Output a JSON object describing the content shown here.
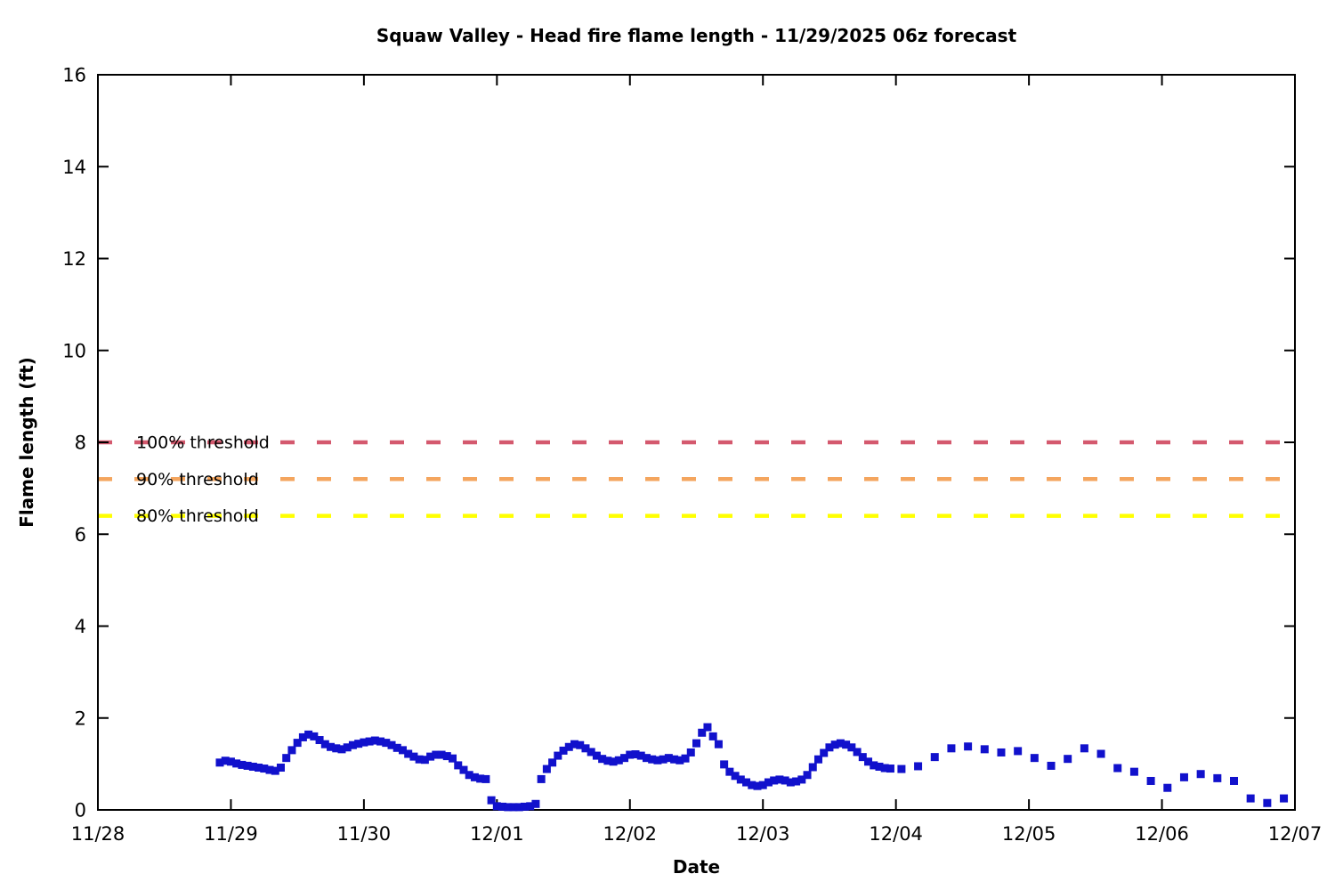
{
  "chart_data": {
    "type": "scatter",
    "title": "Squaw Valley - Head fire flame length - 11/29/2025 06z forecast",
    "xlabel": "Date",
    "ylabel": "Flame length (ft)",
    "x_tick_labels": [
      "11/28",
      "11/29",
      "11/30",
      "12/01",
      "12/02",
      "12/03",
      "12/04",
      "12/05",
      "12/06",
      "12/07"
    ],
    "x_tick_days": [
      0,
      1,
      2,
      3,
      4,
      5,
      6,
      7,
      8,
      9
    ],
    "xlim_days": [
      0,
      9
    ],
    "y_ticks": [
      0,
      2,
      4,
      6,
      8,
      10,
      12,
      14,
      16
    ],
    "ylim": [
      0,
      16
    ],
    "grid": false,
    "x_unit": "hours since 11/28 00:00",
    "thresholds": [
      {
        "label": "100% threshold",
        "value": 8.0,
        "color": "#d4596e"
      },
      {
        "label": "90% threshold",
        "value": 7.2,
        "color": "#f4a55e"
      },
      {
        "label": "80% threshold",
        "value": 6.4,
        "color": "#ffff00"
      }
    ],
    "series": [
      {
        "name": "Head fire flame length (ft)",
        "marker": "square",
        "color": "#1111cc",
        "points": [
          [
            22,
            1.03
          ],
          [
            23,
            1.07
          ],
          [
            24,
            1.05
          ],
          [
            25,
            1.01
          ],
          [
            26,
            0.98
          ],
          [
            27,
            0.96
          ],
          [
            28,
            0.94
          ],
          [
            29,
            0.92
          ],
          [
            30,
            0.9
          ],
          [
            31,
            0.87
          ],
          [
            32,
            0.85
          ],
          [
            33,
            0.92
          ],
          [
            34,
            1.13
          ],
          [
            35,
            1.3
          ],
          [
            36,
            1.46
          ],
          [
            37,
            1.58
          ],
          [
            38,
            1.64
          ],
          [
            39,
            1.6
          ],
          [
            40,
            1.52
          ],
          [
            41,
            1.43
          ],
          [
            42,
            1.37
          ],
          [
            43,
            1.34
          ],
          [
            44,
            1.32
          ],
          [
            45,
            1.36
          ],
          [
            46,
            1.41
          ],
          [
            47,
            1.44
          ],
          [
            48,
            1.47
          ],
          [
            49,
            1.49
          ],
          [
            50,
            1.51
          ],
          [
            51,
            1.49
          ],
          [
            52,
            1.46
          ],
          [
            53,
            1.41
          ],
          [
            54,
            1.35
          ],
          [
            55,
            1.3
          ],
          [
            56,
            1.22
          ],
          [
            57,
            1.16
          ],
          [
            58,
            1.1
          ],
          [
            59,
            1.09
          ],
          [
            60,
            1.16
          ],
          [
            61,
            1.2
          ],
          [
            62,
            1.2
          ],
          [
            63,
            1.17
          ],
          [
            64,
            1.12
          ],
          [
            65,
            0.97
          ],
          [
            66,
            0.87
          ],
          [
            67,
            0.76
          ],
          [
            68,
            0.71
          ],
          [
            69,
            0.68
          ],
          [
            70,
            0.67
          ],
          [
            71,
            0.21
          ],
          [
            72,
            0.08
          ],
          [
            73,
            0.07
          ],
          [
            74,
            0.06
          ],
          [
            75,
            0.06
          ],
          [
            76,
            0.06
          ],
          [
            77,
            0.07
          ],
          [
            78,
            0.08
          ],
          [
            79,
            0.13
          ],
          [
            80,
            0.67
          ],
          [
            81,
            0.89
          ],
          [
            82,
            1.03
          ],
          [
            83,
            1.18
          ],
          [
            84,
            1.29
          ],
          [
            85,
            1.37
          ],
          [
            86,
            1.43
          ],
          [
            87,
            1.41
          ],
          [
            88,
            1.34
          ],
          [
            89,
            1.26
          ],
          [
            90,
            1.18
          ],
          [
            91,
            1.11
          ],
          [
            92,
            1.07
          ],
          [
            93,
            1.05
          ],
          [
            94,
            1.08
          ],
          [
            95,
            1.13
          ],
          [
            96,
            1.2
          ],
          [
            97,
            1.21
          ],
          [
            98,
            1.18
          ],
          [
            99,
            1.13
          ],
          [
            100,
            1.1
          ],
          [
            101,
            1.08
          ],
          [
            102,
            1.1
          ],
          [
            103,
            1.13
          ],
          [
            104,
            1.1
          ],
          [
            105,
            1.08
          ],
          [
            106,
            1.12
          ],
          [
            107,
            1.25
          ],
          [
            108,
            1.45
          ],
          [
            109,
            1.68
          ],
          [
            110,
            1.8
          ],
          [
            111,
            1.6
          ],
          [
            112,
            1.43
          ],
          [
            113,
            0.99
          ],
          [
            114,
            0.83
          ],
          [
            115,
            0.74
          ],
          [
            116,
            0.66
          ],
          [
            117,
            0.6
          ],
          [
            118,
            0.54
          ],
          [
            119,
            0.52
          ],
          [
            120,
            0.54
          ],
          [
            121,
            0.6
          ],
          [
            122,
            0.64
          ],
          [
            123,
            0.66
          ],
          [
            124,
            0.64
          ],
          [
            125,
            0.6
          ],
          [
            126,
            0.62
          ],
          [
            127,
            0.66
          ],
          [
            128,
            0.76
          ],
          [
            129,
            0.93
          ],
          [
            130,
            1.1
          ],
          [
            131,
            1.24
          ],
          [
            132,
            1.36
          ],
          [
            133,
            1.42
          ],
          [
            134,
            1.45
          ],
          [
            135,
            1.42
          ],
          [
            136,
            1.36
          ],
          [
            137,
            1.26
          ],
          [
            138,
            1.15
          ],
          [
            139,
            1.05
          ],
          [
            140,
            0.97
          ],
          [
            141,
            0.94
          ],
          [
            142,
            0.91
          ],
          [
            143,
            0.9
          ],
          [
            145,
            0.89
          ],
          [
            148,
            0.95
          ],
          [
            151,
            1.15
          ],
          [
            154,
            1.34
          ],
          [
            157,
            1.38
          ],
          [
            160,
            1.32
          ],
          [
            163,
            1.25
          ],
          [
            166,
            1.28
          ],
          [
            169,
            1.13
          ],
          [
            172,
            0.96
          ],
          [
            175,
            1.11
          ],
          [
            178,
            1.34
          ],
          [
            181,
            1.22
          ],
          [
            184,
            0.91
          ],
          [
            187,
            0.83
          ],
          [
            190,
            0.63
          ],
          [
            193,
            0.48
          ],
          [
            196,
            0.71
          ],
          [
            199,
            0.78
          ],
          [
            202,
            0.69
          ],
          [
            205,
            0.63
          ],
          [
            208,
            0.25
          ],
          [
            211,
            0.15
          ],
          [
            214,
            0.25
          ]
        ]
      }
    ]
  }
}
